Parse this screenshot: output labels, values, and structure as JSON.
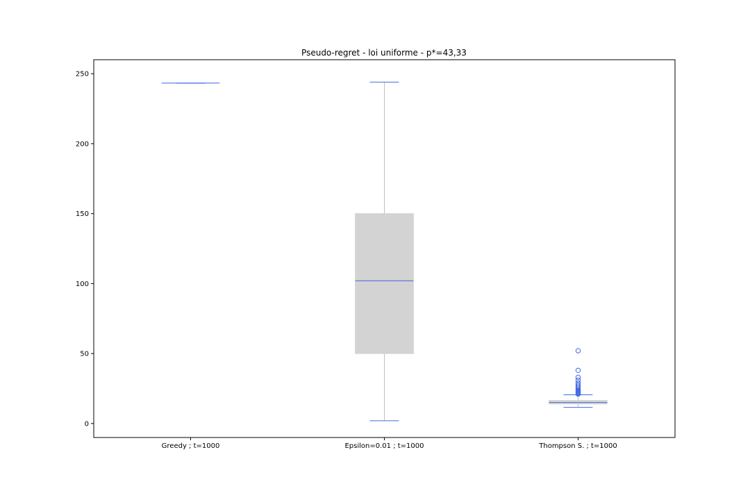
{
  "chart_data": {
    "type": "box",
    "title": "Pseudo-regret - loi uniforme - p*=43,33",
    "xlabel": "",
    "ylabel": "",
    "ylim": [
      -10,
      260
    ],
    "yticks": [
      0,
      50,
      100,
      150,
      200,
      250
    ],
    "grid": false,
    "colors": {
      "box_fill": "#d3d3d3",
      "whisker": "#c0c0c0",
      "median": "#4169e1",
      "caps": "#4169e1",
      "outliers": "#4169e1",
      "axes": "#000000"
    },
    "series": [
      {
        "category": "Greedy ; t=1000",
        "whisker_low": 243.3,
        "q1": 243.3,
        "median": 243.3,
        "q3": 243.3,
        "whisker_high": 243.3,
        "outliers": []
      },
      {
        "category": "Epsilon=0.01 ; t=1000",
        "whisker_low": 2,
        "q1": 50,
        "median": 102,
        "q3": 150,
        "whisker_high": 244,
        "outliers": []
      },
      {
        "category": "Thompson S. ; t=1000",
        "whisker_low": 11.5,
        "q1": 14,
        "median": 15,
        "q3": 16.5,
        "whisker_high": 20.5,
        "outliers": [
          21,
          21.5,
          22,
          22.5,
          23,
          23.5,
          24,
          25,
          26,
          27,
          28,
          29,
          31,
          33,
          38,
          52
        ]
      }
    ]
  }
}
